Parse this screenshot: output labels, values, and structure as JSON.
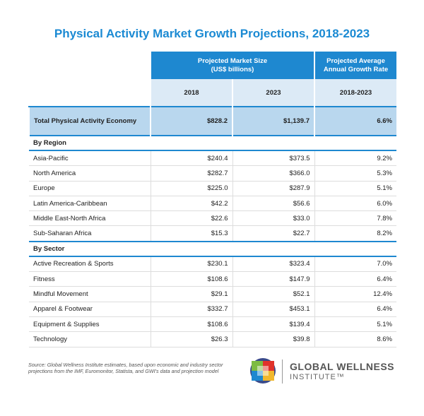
{
  "title": "Physical Activity Market Growth Projections, 2018-2023",
  "table": {
    "header": {
      "group1": [
        "Projected Market Size",
        "(US$ billions)"
      ],
      "group2": [
        "Projected Average",
        "Annual Growth Rate"
      ],
      "columns": [
        "2018",
        "2023",
        "2018-2023"
      ]
    },
    "total": [
      "Total Physical Activity Economy",
      "$828.2",
      "$1,139.7",
      "6.6%"
    ],
    "sections": [
      {
        "title": "By Region",
        "rows": [
          [
            "Asia-Pacific",
            "$240.4",
            "$373.5",
            "9.2%"
          ],
          [
            "North America",
            "$282.7",
            "$366.0",
            "5.3%"
          ],
          [
            "Europe",
            "$225.0",
            "$287.9",
            "5.1%"
          ],
          [
            "Latin America-Caribbean",
            "$42.2",
            "$56.6",
            "6.0%"
          ],
          [
            "Middle East-North Africa",
            "$22.6",
            "$33.0",
            "7.8%"
          ],
          [
            "Sub-Saharan Africa",
            "$15.3",
            "$22.7",
            "8.2%"
          ]
        ]
      },
      {
        "title": "By Sector",
        "rows": [
          [
            "Active Recreation & Sports",
            "$230.1",
            "$323.4",
            "7.0%"
          ],
          [
            "Fitness",
            "$108.6",
            "$147.9",
            "6.4%"
          ],
          [
            "Mindful Movement",
            "$29.1",
            "$52.1",
            "12.4%"
          ],
          [
            "Apparel & Footwear",
            "$332.7",
            "$453.1",
            "6.4%"
          ],
          [
            "Equipment & Supplies",
            "$108.6",
            "$139.4",
            "5.1%"
          ],
          [
            "Technology",
            "$26.3",
            "$39.8",
            "8.6%"
          ]
        ]
      }
    ]
  },
  "footer": {
    "source": "Source: Global Wellness Institute estimates, based upon economic and industry sector projections from the IMF, Euromonitor, Statista, and GWI's data and projection model",
    "logo": [
      "GLOBAL WELLNESS",
      "INSTITUTE™"
    ]
  }
}
